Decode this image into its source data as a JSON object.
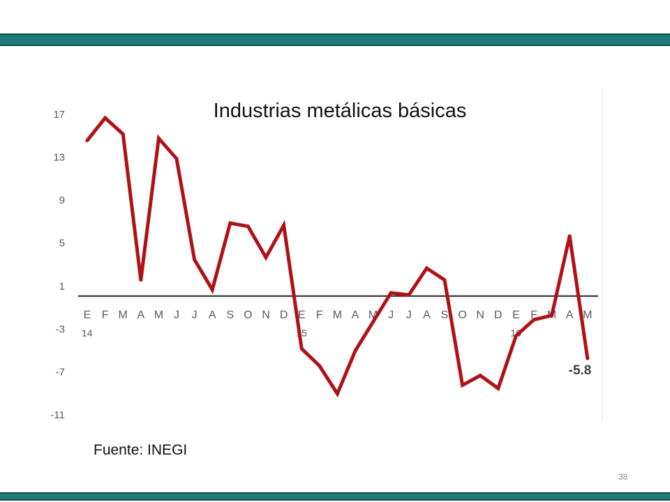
{
  "slide": {
    "source_text": "Fuente: INEGI",
    "page_number": "38",
    "band_color": "#1f7a7a"
  },
  "chart_data": {
    "type": "line",
    "title": "Industrias metálicas básicas",
    "xlabel": "",
    "ylabel": "",
    "ylim": [
      -11,
      17
    ],
    "yticks": [
      17,
      13,
      9,
      5,
      1,
      -3,
      -7,
      -11
    ],
    "grid": false,
    "legend": "none",
    "categories": [
      "E",
      "F",
      "M",
      "A",
      "M",
      "J",
      "J",
      "A",
      "S",
      "O",
      "N",
      "D",
      "E",
      "F",
      "M",
      "A",
      "M",
      "J",
      "J",
      "A",
      "S",
      "O",
      "N",
      "D",
      "E",
      "F",
      "M",
      "A",
      "M"
    ],
    "year_labels": [
      {
        "index": 0,
        "label": "14"
      },
      {
        "index": 12,
        "label": "15"
      },
      {
        "index": 24,
        "label": "16"
      }
    ],
    "series": [
      {
        "color": "#b01116",
        "values": [
          14.5,
          16.6,
          15.1,
          1.5,
          14.7,
          12.8,
          3.4,
          0.6,
          6.8,
          6.5,
          3.6,
          6.6,
          -4.9,
          -6.5,
          -9.1,
          -5.1,
          -2.4,
          0.3,
          0.1,
          2.6,
          1.5,
          -8.3,
          -7.4,
          -8.6,
          -3.7,
          -2.2,
          -1.8,
          5.6,
          -5.8
        ]
      }
    ],
    "annotation": {
      "index": 28,
      "label": "-5.8"
    },
    "colors": {
      "line": "#b01116",
      "axis": "#222222",
      "ticks": "#595959"
    }
  }
}
